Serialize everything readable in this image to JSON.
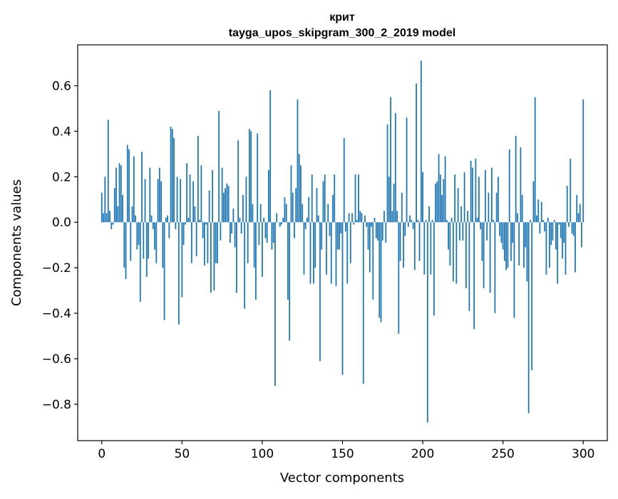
{
  "chart_data": {
    "type": "bar",
    "title_line1": "крит",
    "title_line2": "tayga_upos_skipgram_300_2_2019 model",
    "xlabel": "Vector components",
    "ylabel": "Components values",
    "xlim": [
      -15,
      315
    ],
    "ylim": [
      -0.96,
      0.78
    ],
    "bar_color": "#1f77b4",
    "xticks": [
      0,
      50,
      100,
      150,
      200,
      250,
      300
    ],
    "xtick_labels": [
      "0",
      "50",
      "100",
      "150",
      "200",
      "250",
      "300"
    ],
    "yticks": [
      -0.8,
      -0.6,
      -0.4,
      -0.2,
      0.0,
      0.2,
      0.4,
      0.6
    ],
    "ytick_labels": [
      "−0.8",
      "−0.6",
      "−0.4",
      "−0.2",
      "0.0",
      "0.2",
      "0.4",
      "0.6"
    ],
    "values": [
      0.13,
      0.04,
      0.2,
      0.04,
      0.45,
      0.05,
      -0.03,
      -0.01,
      0.15,
      0.24,
      0.07,
      0.26,
      0.25,
      0.12,
      -0.2,
      -0.25,
      0.34,
      0.32,
      -0.17,
      0.07,
      0.29,
      0.03,
      -0.12,
      -0.1,
      -0.35,
      0.31,
      -0.16,
      0.19,
      -0.24,
      -0.16,
      0.24,
      0.03,
      -0.03,
      -0.12,
      -0.18,
      0.19,
      0.24,
      0.18,
      -0.2,
      -0.43,
      0.02,
      0.03,
      -0.07,
      0.42,
      0.41,
      0.37,
      -0.03,
      0.2,
      -0.45,
      0.19,
      -0.33,
      -0.1,
      -0.01,
      0.26,
      0.02,
      0.21,
      -0.18,
      0.18,
      0.07,
      -0.15,
      0.38,
      0.01,
      0.25,
      -0.07,
      -0.19,
      -0.01,
      -0.18,
      0.14,
      -0.31,
      0.23,
      -0.3,
      -0.18,
      -0.18,
      0.49,
      -0.08,
      0.24,
      0.13,
      0.15,
      0.17,
      0.16,
      -0.09,
      -0.05,
      0.06,
      -0.11,
      -0.31,
      0.36,
      0.02,
      -0.05,
      0.12,
      -0.38,
      0.2,
      -0.18,
      0.41,
      0.4,
      0.08,
      -0.2,
      -0.34,
      0.39,
      -0.1,
      0.08,
      -0.24,
      0.02,
      -0.07,
      -0.09,
      0.23,
      0.58,
      -0.12,
      -0.09,
      -0.72,
      0.04,
      0.0,
      -0.02,
      -0.01,
      0.02,
      0.11,
      0.08,
      -0.34,
      -0.52,
      0.25,
      0.13,
      -0.07,
      0.15,
      0.54,
      0.3,
      0.25,
      0.08,
      -0.23,
      -0.03,
      0.02,
      0.11,
      -0.27,
      0.21,
      -0.27,
      -0.2,
      0.15,
      0.03,
      -0.61,
      -0.12,
      0.18,
      0.21,
      -0.23,
      0.08,
      -0.06,
      -0.27,
      0.12,
      0.21,
      -0.28,
      -0.12,
      -0.12,
      -0.05,
      -0.67,
      0.37,
      -0.04,
      -0.27,
      0.04,
      -0.18,
      0.04,
      -0.01,
      0.21,
      0.01,
      0.21,
      0.05,
      0.04,
      -0.71,
      0.03,
      -0.02,
      -0.12,
      -0.22,
      -0.02,
      -0.34,
      0.02,
      -0.07,
      -0.08,
      -0.42,
      -0.44,
      -0.08,
      0.05,
      -0.09,
      0.43,
      0.2,
      0.55,
      0.05,
      0.17,
      0.48,
      0.05,
      -0.49,
      -0.17,
      0.13,
      -0.2,
      -0.06,
      0.46,
      -0.02,
      0.03,
      0.01,
      -0.03,
      -0.21,
      0.61,
      0.01,
      -0.17,
      0.71,
      0.22,
      -0.23,
      0.01,
      -0.88,
      0.07,
      -0.23,
      0.01,
      -0.41,
      0.17,
      0.18,
      0.3,
      0.21,
      0.12,
      0.19,
      0.29,
      0.01,
      -0.12,
      -0.19,
      0.02,
      -0.26,
      0.21,
      -0.27,
      0.15,
      -0.08,
      0.07,
      -0.08,
      0.22,
      -0.29,
      0.05,
      -0.39,
      0.27,
      0.24,
      -0.47,
      0.28,
      0.02,
      0.2,
      -0.03,
      -0.17,
      -0.29,
      0.23,
      -0.08,
      0.13,
      -0.31,
      0.24,
      0.01,
      -0.4,
      0.13,
      0.2,
      -0.06,
      -0.09,
      -0.12,
      -0.17,
      -0.21,
      -0.2,
      0.32,
      -0.17,
      -0.09,
      -0.42,
      0.38,
      0.04,
      -0.19,
      0.33,
      0.12,
      -0.2,
      -0.11,
      -0.26,
      -0.84,
      0.01,
      -0.65,
      0.18,
      0.55,
      0.03,
      0.1,
      -0.05,
      0.09,
      0.01,
      -0.04,
      -0.23,
      0.02,
      -0.2,
      -0.1,
      -0.08,
      0.01,
      -0.12,
      -0.27,
      -0.01,
      -0.07,
      -0.16,
      -0.09,
      -0.23,
      0.16,
      -0.02,
      0.28,
      -0.05,
      -0.06,
      -0.22,
      0.12,
      0.04,
      0.08,
      -0.11,
      0.54
    ]
  }
}
